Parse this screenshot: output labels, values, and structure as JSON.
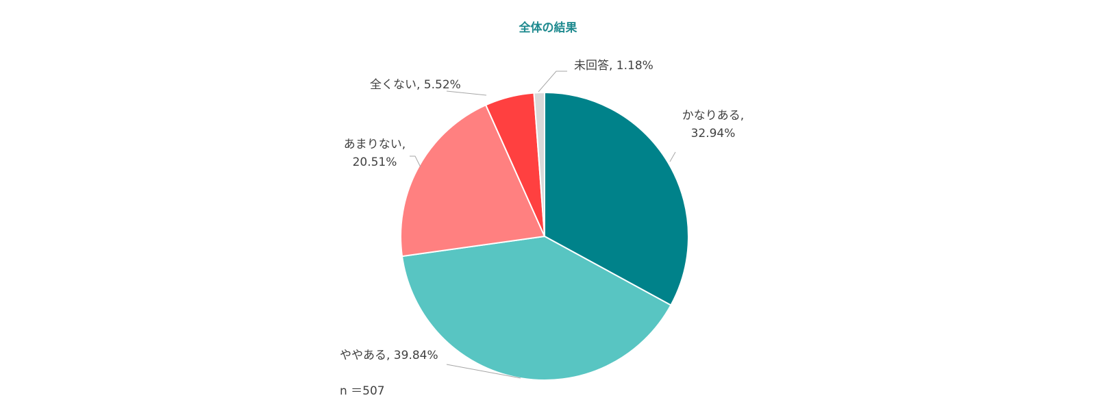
{
  "chart_data": {
    "type": "pie",
    "title": "全体の結果",
    "categories": [
      "かなりある",
      "ややある",
      "あまりない",
      "全くない",
      "未回答"
    ],
    "values": [
      32.94,
      39.84,
      20.51,
      5.52,
      1.18
    ],
    "colors": [
      "#00828a",
      "#58c5c2",
      "#ff8080",
      "#ff4040",
      "#d9d9d9"
    ],
    "unit": "%",
    "start_angle_deg": 0,
    "direction": "clockwise",
    "legend": "none (data labels with leader lines)",
    "sample_size": 507
  },
  "labels": {
    "kanari_line1": "かなりある,",
    "kanari_line2": "32.94%",
    "yaya": "ややある, 39.84%",
    "amari_line1": "あまりない,",
    "amari_line2": "20.51%",
    "mattaku": "全くない, 5.52%",
    "mikaitou": "未回答, 1.18%"
  },
  "footnote": "n ＝507"
}
